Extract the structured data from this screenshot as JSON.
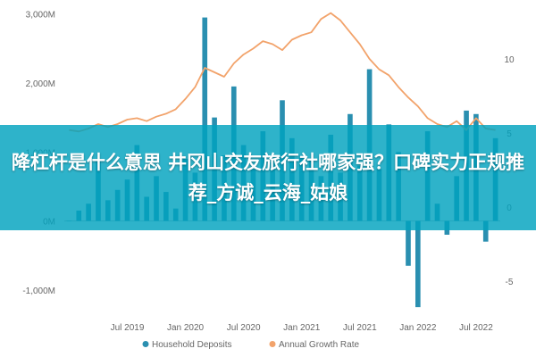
{
  "overlay": {
    "title": "降杠杆是什么意思 井冈山交友旅行社哪家强？口碑实力正规推荐_方诚_云海_姑娘"
  },
  "colors": {
    "bars": "#2a8fb0",
    "line": "#f2a36b",
    "banner": "#00a2be",
    "axis_text": "#666666",
    "zero_line": "#bfbfbf"
  },
  "chart_data": {
    "type": "bar",
    "title": "",
    "xlabel": "",
    "ylabel": "",
    "ylim": [
      -1300,
      3100
    ],
    "y2lim": [
      -7,
      13.5
    ],
    "y_ticks": [
      "3,000M",
      "2,000M",
      "1,000M",
      "0M",
      "-1,000M"
    ],
    "y_tick_values": [
      3000,
      2000,
      1000,
      0,
      -1000
    ],
    "y2_ticks": [
      "10",
      "5",
      "0",
      "-5"
    ],
    "y2_tick_values": [
      10,
      5,
      0,
      -5
    ],
    "x_ticks": [
      "Jul 2019",
      "Jan 2020",
      "Jul 2020",
      "Jan 2021",
      "Jul 2021",
      "Jan 2022",
      "Jul 2022"
    ],
    "x_tick_index": [
      6,
      12,
      18,
      24,
      30,
      36,
      42
    ],
    "categories": [
      "2019-01",
      "2019-02",
      "2019-03",
      "2019-04",
      "2019-05",
      "2019-06",
      "2019-07",
      "2019-08",
      "2019-09",
      "2019-10",
      "2019-11",
      "2019-12",
      "2020-01",
      "2020-02",
      "2020-03",
      "2020-04",
      "2020-05",
      "2020-06",
      "2020-07",
      "2020-08",
      "2020-09",
      "2020-10",
      "2020-11",
      "2020-12",
      "2021-01",
      "2021-02",
      "2021-03",
      "2021-04",
      "2021-05",
      "2021-06",
      "2021-07",
      "2021-08",
      "2021-09",
      "2021-10",
      "2021-11",
      "2021-12",
      "2022-01",
      "2022-02",
      "2022-03",
      "2022-04",
      "2022-05",
      "2022-06",
      "2022-07",
      "2022-08",
      "2022-09"
    ],
    "series": [
      {
        "name": "Household Deposits",
        "type": "bar",
        "axis": "left",
        "values": [
          0,
          150,
          250,
          900,
          300,
          450,
          600,
          1100,
          350,
          650,
          420,
          180,
          900,
          700,
          2950,
          1500,
          950,
          1950,
          1100,
          750,
          1300,
          850,
          1750,
          1200,
          950,
          900,
          650,
          1250,
          700,
          1550,
          800,
          2200,
          750,
          1400,
          1000,
          -650,
          -1250,
          1300,
          250,
          -200,
          650,
          1600,
          1550,
          -300,
          1200
        ]
      },
      {
        "name": "Annual Growth Rate",
        "type": "line",
        "axis": "right",
        "values": [
          5.2,
          5.1,
          5.3,
          5.6,
          5.4,
          5.6,
          5.9,
          6.0,
          5.8,
          6.1,
          6.3,
          6.6,
          7.3,
          8.1,
          9.4,
          9.1,
          8.8,
          9.7,
          10.3,
          10.7,
          11.2,
          11.0,
          10.6,
          11.3,
          11.6,
          11.8,
          12.7,
          13.1,
          12.6,
          11.8,
          11.0,
          10.0,
          9.3,
          8.9,
          8.1,
          7.4,
          6.8,
          6.0,
          5.6,
          5.4,
          5.8,
          5.2,
          6.0,
          5.3,
          5.2
        ]
      }
    ],
    "legend": {
      "position": "bottom-center",
      "entries": [
        "Household Deposits",
        "Annual Growth Rate"
      ]
    },
    "grid": false
  }
}
